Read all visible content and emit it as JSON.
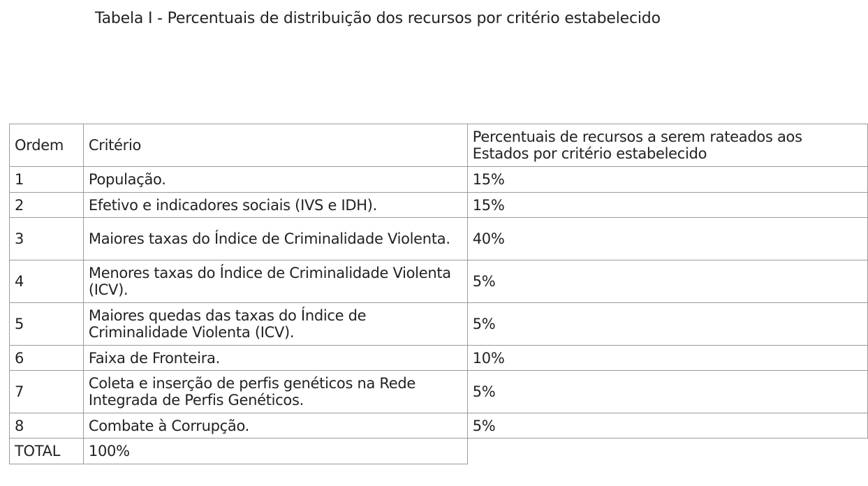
{
  "title": "Tabela I - Percentuais de distribuição dos recursos por critério estabelecido",
  "table": {
    "headers": {
      "ordem": "Ordem",
      "criterio": "Critério",
      "percentual": "Percentuais de recursos a serem rateados aos Estados por critério estabelecido"
    },
    "rows": [
      {
        "ordem": "1",
        "criterio": "População.",
        "percentual": "15%"
      },
      {
        "ordem": "2",
        "criterio": "Efetivo e indicadores sociais (IVS e IDH).",
        "percentual": "15%"
      },
      {
        "ordem": "3",
        "criterio": "Maiores taxas do Índice de Criminalidade Violenta.",
        "percentual": "40%"
      },
      {
        "ordem": "4",
        "criterio": "Menores taxas do Índice de Criminalidade Violenta (ICV).",
        "percentual": "5%"
      },
      {
        "ordem": "5",
        "criterio": "Maiores quedas das taxas do Índice de Criminalidade Violenta (ICV).",
        "percentual": "5%"
      },
      {
        "ordem": "6",
        "criterio": "Faixa de Fronteira.",
        "percentual": "10%"
      },
      {
        "ordem": "7",
        "criterio": "Coleta e inserção de perfis genéticos na Rede Integrada de Perfis Genéticos.",
        "percentual": "5%"
      },
      {
        "ordem": "8",
        "criterio": "Combate à Corrupção.",
        "percentual": "5%"
      }
    ],
    "total": {
      "label": "TOTAL",
      "value": "100%"
    }
  }
}
